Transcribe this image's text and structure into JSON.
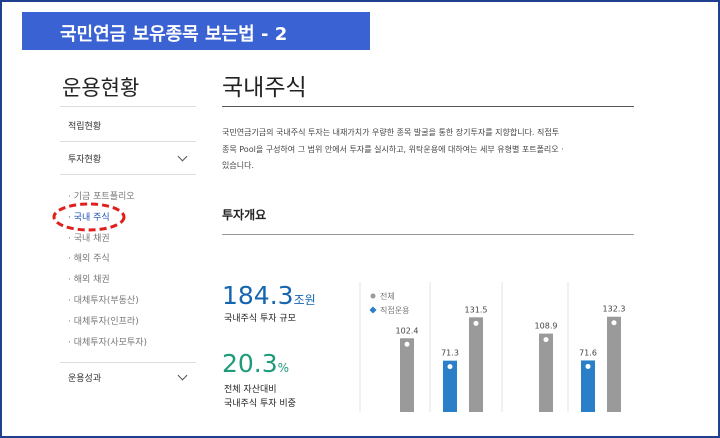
{
  "banner": {
    "title": "국민연금 보유종목 보는법 - 2"
  },
  "sidebar": {
    "title": "운용현황",
    "menu": [
      "적립현황",
      "투자현황"
    ],
    "submenu": [
      "· 기금 포트폴리오",
      "· 국내 주식",
      "· 국내 채권",
      "· 해외 주식",
      "· 해외 채권",
      "· 대체투자(부동산)",
      "· 대체투자(인프라)",
      "· 대체투자(사모투자)"
    ],
    "last": "운용성과"
  },
  "main": {
    "title": "국내주식",
    "paragraph": [
      "국민연금기금의 국내주식 투자는 내재가치가 우량한 종목 발굴을 통한 장기투자를 지향합니다. 직접투",
      "종목 Pool을 구성하여 그 범위 안에서 투자를 실시하고, 위탁운용에 대하여는 세부 유형별 포트폴리오 ·",
      "있습니다."
    ],
    "section": "투자개요",
    "stat1": {
      "value": "184.3",
      "unit": "조원",
      "label": "국내주식 투자 규모"
    },
    "stat2": {
      "value": "20.3",
      "unit": "%",
      "label": [
        "전체 자산대비",
        "국내주식 투자 비중"
      ]
    }
  },
  "chart": {
    "legend": [
      {
        "name": "전체",
        "color": "#9a9a9a"
      },
      {
        "name": "직접운용",
        "color": "#2a7fc8"
      }
    ],
    "bars": [
      {
        "series": 0,
        "value": 102.4
      },
      {
        "series": 1,
        "value": 71.3
      },
      {
        "series": 0,
        "value": 131.5
      },
      {
        "series": 0,
        "value": 108.9
      },
      {
        "series": 1,
        "value": 71.6
      },
      {
        "series": 0,
        "value": 132.3
      }
    ]
  }
}
